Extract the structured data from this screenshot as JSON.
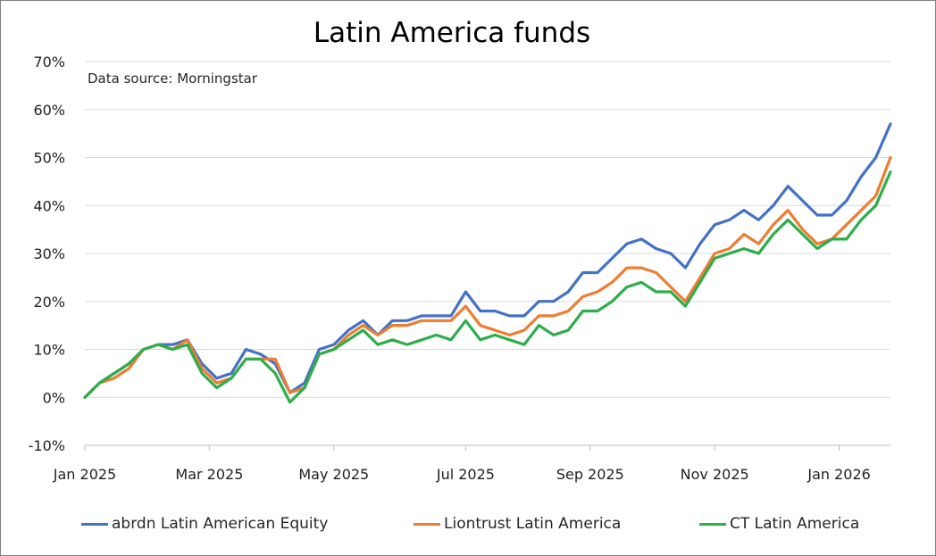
{
  "chart_data": {
    "type": "line",
    "title": "Latin America funds",
    "subtitle": "Data source: Morningstar",
    "xlabel": "",
    "ylabel": "",
    "ylim": [
      -0.1,
      0.7
    ],
    "yticks": [
      "-10%",
      "0%",
      "10%",
      "20%",
      "30%",
      "40%",
      "50%",
      "60%",
      "70%"
    ],
    "xticks": [
      "Jan 2025",
      "Mar 2025",
      "May 2025",
      "Jul 2025",
      "Sep 2025",
      "Nov 2025",
      "Jan 2026"
    ],
    "xtick_positions": [
      0,
      8.5,
      17,
      26,
      34.5,
      43,
      51.5
    ],
    "grid": true,
    "legend_position": "bottom",
    "x": [
      0,
      1,
      2,
      3,
      4,
      5,
      6,
      7,
      8,
      9,
      10,
      11,
      12,
      13,
      14,
      15,
      16,
      17,
      18,
      19,
      20,
      21,
      22,
      23,
      24,
      25,
      26,
      27,
      28,
      29,
      30,
      31,
      32,
      33,
      34,
      35,
      36,
      37,
      38,
      39,
      40,
      41,
      42,
      43,
      44,
      45,
      46,
      47,
      48,
      49,
      50,
      51,
      52,
      53,
      54,
      55
    ],
    "series": [
      {
        "name": "abrdn Latin American Equity",
        "color": "#4472C4",
        "values": [
          0.0,
          0.03,
          0.05,
          0.07,
          0.1,
          0.11,
          0.11,
          0.12,
          0.07,
          0.04,
          0.05,
          0.1,
          0.09,
          0.07,
          0.01,
          0.03,
          0.1,
          0.11,
          0.14,
          0.16,
          0.13,
          0.16,
          0.16,
          0.17,
          0.17,
          0.17,
          0.22,
          0.18,
          0.18,
          0.17,
          0.17,
          0.2,
          0.2,
          0.22,
          0.26,
          0.26,
          0.29,
          0.32,
          0.33,
          0.31,
          0.3,
          0.27,
          0.32,
          0.36,
          0.37,
          0.39,
          0.37,
          0.4,
          0.44,
          0.41,
          0.38,
          0.38,
          0.41,
          0.46,
          0.5,
          0.57
        ]
      },
      {
        "name": "Liontrust Latin America",
        "color": "#ED7D31",
        "values": [
          0.0,
          0.03,
          0.04,
          0.06,
          0.1,
          0.11,
          0.1,
          0.12,
          0.06,
          0.03,
          0.04,
          0.08,
          0.08,
          0.08,
          0.01,
          0.02,
          0.09,
          0.1,
          0.13,
          0.15,
          0.13,
          0.15,
          0.15,
          0.16,
          0.16,
          0.16,
          0.19,
          0.15,
          0.14,
          0.13,
          0.14,
          0.17,
          0.17,
          0.18,
          0.21,
          0.22,
          0.24,
          0.27,
          0.27,
          0.26,
          0.23,
          0.2,
          0.25,
          0.3,
          0.31,
          0.34,
          0.32,
          0.36,
          0.39,
          0.35,
          0.32,
          0.33,
          0.36,
          0.39,
          0.42,
          0.5
        ]
      },
      {
        "name": "CT Latin America",
        "color": "#2EAD4B",
        "values": [
          0.0,
          0.03,
          0.05,
          0.07,
          0.1,
          0.11,
          0.1,
          0.11,
          0.05,
          0.02,
          0.04,
          0.08,
          0.08,
          0.05,
          -0.01,
          0.02,
          0.09,
          0.1,
          0.12,
          0.14,
          0.11,
          0.12,
          0.11,
          0.12,
          0.13,
          0.12,
          0.16,
          0.12,
          0.13,
          0.12,
          0.11,
          0.15,
          0.13,
          0.14,
          0.18,
          0.18,
          0.2,
          0.23,
          0.24,
          0.22,
          0.22,
          0.19,
          0.24,
          0.29,
          0.3,
          0.31,
          0.3,
          0.34,
          0.37,
          0.34,
          0.31,
          0.33,
          0.33,
          0.37,
          0.4,
          0.47
        ]
      }
    ]
  }
}
